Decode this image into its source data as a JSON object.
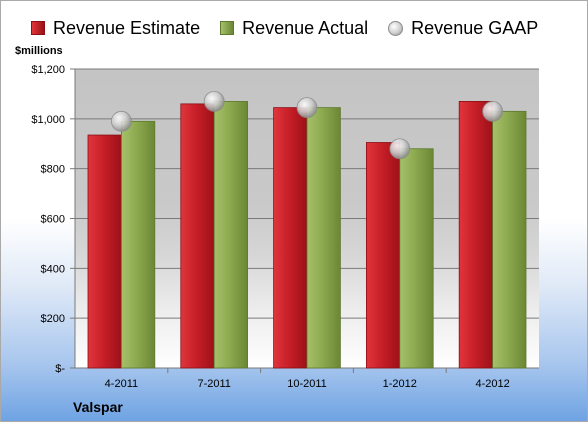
{
  "chart_data": {
    "type": "bar",
    "categories": [
      "4-2011",
      "7-2011",
      "10-2011",
      "1-2012",
      "4-2012"
    ],
    "series": [
      {
        "name": "Revenue Estimate",
        "kind": "bar",
        "color": "#c0202a",
        "values": [
          935,
          1060,
          1045,
          905,
          1070
        ]
      },
      {
        "name": "Revenue Actual",
        "kind": "bar",
        "color": "#8faa4e",
        "values": [
          990,
          1070,
          1045,
          880,
          1030
        ]
      },
      {
        "name": "Revenue GAAP",
        "kind": "marker",
        "color": "#b9b9b9",
        "values": [
          990,
          1070,
          1045,
          880,
          1030
        ]
      }
    ],
    "ylabel": "$millions",
    "ylim": [
      0,
      1200
    ],
    "yticks": [
      0,
      200,
      400,
      600,
      800,
      1000,
      1200
    ],
    "ytick_labels": [
      "$-",
      "$200",
      "$400",
      "$600",
      "$800",
      "$1,000",
      "$1,200"
    ],
    "grid": true,
    "legend_position": "top"
  },
  "company": "Valspar"
}
